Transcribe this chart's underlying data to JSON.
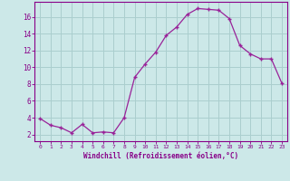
{
  "x": [
    0,
    1,
    2,
    3,
    4,
    5,
    6,
    7,
    8,
    9,
    10,
    11,
    12,
    13,
    14,
    15,
    16,
    17,
    18,
    19,
    20,
    21,
    22,
    23
  ],
  "y": [
    3.9,
    3.1,
    2.8,
    2.2,
    3.2,
    2.2,
    2.3,
    2.2,
    4.0,
    8.8,
    10.4,
    11.8,
    13.8,
    14.8,
    16.3,
    17.0,
    16.9,
    16.8,
    15.8,
    12.6,
    11.6,
    11.0,
    11.0,
    8.1
  ],
  "line_color": "#992299",
  "marker": "+",
  "marker_color": "#992299",
  "bg_color": "#cce8e8",
  "grid_color": "#aacece",
  "tick_color": "#880088",
  "xlabel": "Windchill (Refroidissement éolien,°C)",
  "xlabel_color": "#880088",
  "ylabel_ticks": [
    2,
    4,
    6,
    8,
    10,
    12,
    14,
    16
  ],
  "ylim": [
    1.2,
    17.8
  ],
  "xlim": [
    -0.5,
    23.5
  ],
  "spine_color": "#880088",
  "font_family": "monospace"
}
